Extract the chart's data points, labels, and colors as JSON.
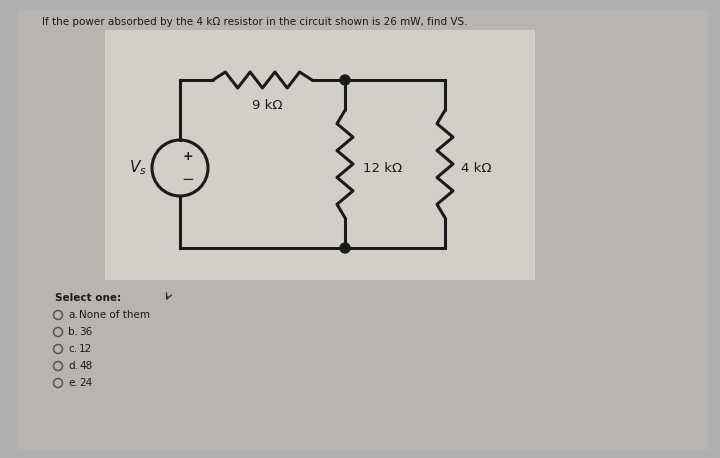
{
  "question_text": "If the power absorbed by the 4 kΩ resistor in the circuit shown is 26 mW, find VS.",
  "select_one_text": "Select one:",
  "options": [
    [
      "a.",
      "None of them"
    ],
    [
      "b.",
      "36"
    ],
    [
      "c.",
      "12"
    ],
    [
      "d.",
      "48"
    ],
    [
      "e.",
      "24"
    ]
  ],
  "resistor_9k_label": "9 kΩ",
  "resistor_12k_label": "12 kΩ",
  "resistor_4k_label": "4 kΩ",
  "bg_page": "#b0b0b0",
  "bg_content": "#bebebe",
  "bg_circuit": "#d0cdc8",
  "line_color": "#1a1a1a",
  "text_color": "#2a2a2a",
  "lw": 2.2
}
